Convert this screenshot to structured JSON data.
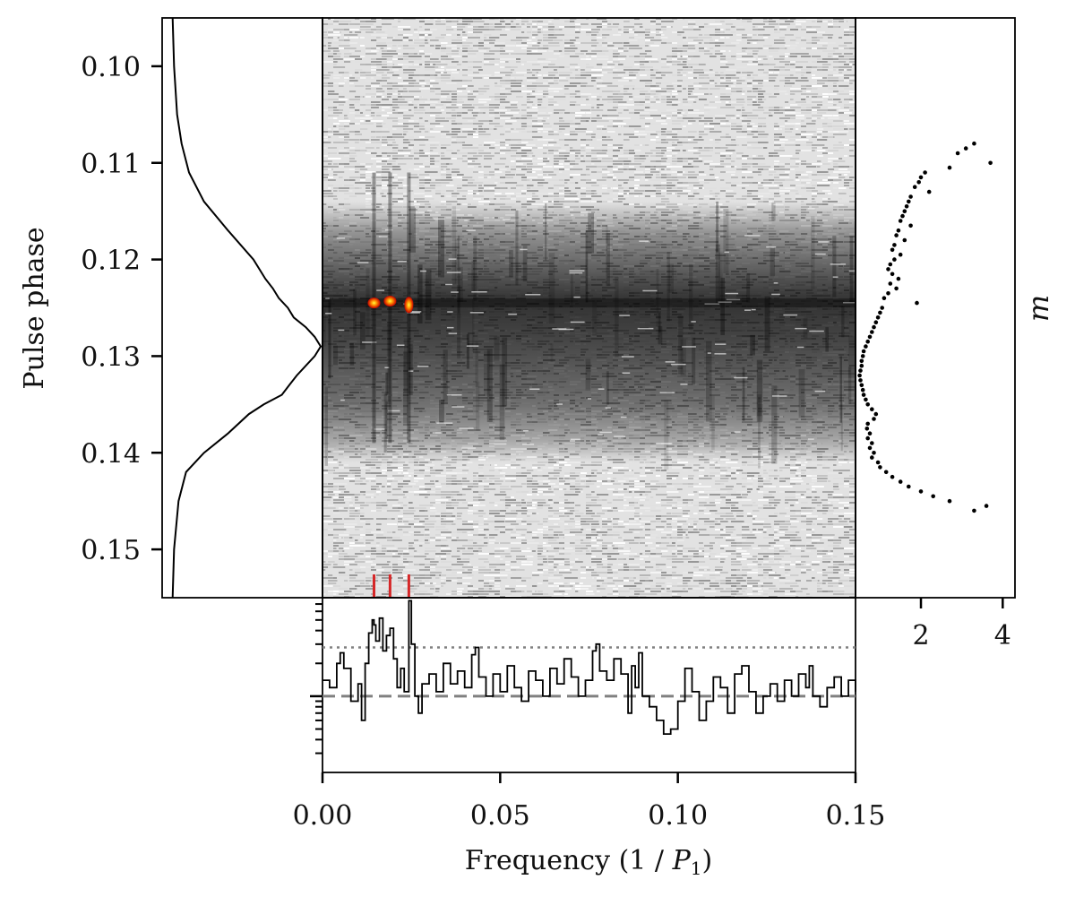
{
  "chart_data": [
    {
      "type": "heatmap",
      "panel": "main",
      "description_colormap": "grey background noise, dark horizontal band, red-yellow hot spots",
      "x_range": [
        0.0,
        0.15
      ],
      "y_range": [
        0.095,
        0.155
      ],
      "y_inverted": true,
      "band_phase_range": [
        0.114,
        0.141
      ],
      "band_peak_phase": 0.1245,
      "hot_spots": [
        {
          "freq": 0.0145,
          "phase": 0.1245
        },
        {
          "freq": 0.019,
          "phase": 0.1243
        },
        {
          "freq": 0.0243,
          "phase": 0.1247
        }
      ],
      "markers": {
        "color": "#d62728",
        "freqs": [
          0.0145,
          0.019,
          0.0243
        ]
      }
    },
    {
      "type": "line",
      "panel": "left-profile",
      "ylabel": "Pulse phase",
      "yticks": [
        "0.10",
        "0.11",
        "0.12",
        "0.13",
        "0.14",
        "0.15"
      ],
      "ytick_values": [
        0.1,
        0.11,
        0.12,
        0.13,
        0.14,
        0.15
      ],
      "y_range": [
        0.095,
        0.155
      ],
      "y_inverted": true,
      "profile": {
        "phase": [
          0.095,
          0.1,
          0.105,
          0.108,
          0.111,
          0.114,
          0.117,
          0.12,
          0.122,
          0.123,
          0.124,
          0.125,
          0.126,
          0.127,
          0.128,
          0.129,
          0.13,
          0.131,
          0.132,
          0.133,
          0.134,
          0.135,
          0.136,
          0.138,
          0.14,
          0.142,
          0.145,
          0.15,
          0.155
        ],
        "intensity": [
          0.01,
          0.02,
          0.04,
          0.07,
          0.12,
          0.22,
          0.38,
          0.55,
          0.63,
          0.68,
          0.72,
          0.78,
          0.82,
          0.9,
          0.96,
          1.0,
          0.96,
          0.9,
          0.84,
          0.79,
          0.74,
          0.62,
          0.52,
          0.38,
          0.22,
          0.1,
          0.05,
          0.02,
          0.01
        ]
      }
    },
    {
      "type": "scatter",
      "panel": "right-modulation-index",
      "xlabel": "m",
      "xticks": [
        "2",
        "4"
      ],
      "xtick_values": [
        2,
        4
      ],
      "x_range": [
        0.4,
        4.3
      ],
      "y_range": [
        0.095,
        0.155
      ],
      "points": {
        "phase": [
          0.108,
          0.1085,
          0.109,
          0.11,
          0.1105,
          0.111,
          0.1115,
          0.112,
          0.1125,
          0.113,
          0.1135,
          0.114,
          0.1145,
          0.115,
          0.1155,
          0.116,
          0.1165,
          0.117,
          0.1175,
          0.118,
          0.1185,
          0.119,
          0.1195,
          0.12,
          0.1205,
          0.121,
          0.1215,
          0.122,
          0.1225,
          0.123,
          0.1235,
          0.124,
          0.1245,
          0.125,
          0.1255,
          0.126,
          0.1265,
          0.127,
          0.1275,
          0.128,
          0.1285,
          0.129,
          0.1295,
          0.13,
          0.1305,
          0.131,
          0.1315,
          0.132,
          0.1325,
          0.133,
          0.1335,
          0.134,
          0.1345,
          0.135,
          0.1355,
          0.136,
          0.1365,
          0.137,
          0.1375,
          0.138,
          0.1385,
          0.139,
          0.1395,
          0.14,
          0.1405,
          0.141,
          0.1415,
          0.142,
          0.1425,
          0.143,
          0.1435,
          0.144,
          0.1445,
          0.145,
          0.1455,
          0.146
        ],
        "m": [
          3.3,
          3.1,
          2.9,
          3.7,
          2.7,
          2.1,
          2.0,
          1.95,
          1.85,
          2.2,
          1.75,
          1.7,
          1.65,
          1.6,
          1.55,
          1.5,
          1.75,
          1.45,
          1.4,
          1.6,
          1.35,
          1.3,
          1.5,
          1.35,
          1.25,
          1.2,
          1.3,
          1.45,
          1.25,
          1.4,
          1.2,
          1.1,
          1.9,
          1.05,
          1.0,
          0.95,
          0.9,
          0.85,
          0.8,
          0.75,
          0.7,
          0.65,
          0.6,
          0.58,
          0.55,
          0.55,
          0.52,
          0.5,
          0.52,
          0.55,
          0.58,
          0.6,
          0.65,
          0.7,
          0.8,
          0.9,
          0.85,
          0.7,
          0.68,
          0.75,
          0.7,
          0.8,
          0.75,
          0.85,
          0.8,
          0.95,
          1.0,
          1.15,
          1.3,
          1.5,
          1.7,
          2.0,
          2.3,
          2.7,
          3.6,
          3.3
        ],
        "color": "#000000"
      }
    },
    {
      "type": "line",
      "panel": "bottom-spectrum",
      "xlabel_text": "Frequency (1 / ",
      "xlabel_math": "P",
      "xlabel_sub": "1",
      "xlabel_close": ")",
      "xticks": [
        "0.00",
        "0.05",
        "0.10",
        "0.15"
      ],
      "xtick_values": [
        0.0,
        0.05,
        0.1,
        0.15
      ],
      "x_range": [
        0.0,
        0.15
      ],
      "y_log": true,
      "y_range": [
        0.2,
        8.0
      ],
      "dashed_level": 1.0,
      "dotted_level": 2.8,
      "spectrum": {
        "freq": [
          0.0,
          0.002,
          0.004,
          0.005,
          0.006,
          0.008,
          0.01,
          0.011,
          0.012,
          0.013,
          0.014,
          0.0145,
          0.015,
          0.016,
          0.017,
          0.018,
          0.019,
          0.02,
          0.021,
          0.022,
          0.023,
          0.0243,
          0.025,
          0.026,
          0.027,
          0.028,
          0.03,
          0.032,
          0.034,
          0.036,
          0.038,
          0.04,
          0.042,
          0.043,
          0.044,
          0.046,
          0.048,
          0.05,
          0.052,
          0.054,
          0.056,
          0.058,
          0.06,
          0.062,
          0.064,
          0.066,
          0.068,
          0.07,
          0.072,
          0.074,
          0.076,
          0.077,
          0.078,
          0.08,
          0.082,
          0.084,
          0.086,
          0.087,
          0.088,
          0.089,
          0.09,
          0.092,
          0.094,
          0.096,
          0.098,
          0.1,
          0.102,
          0.104,
          0.106,
          0.108,
          0.11,
          0.112,
          0.114,
          0.116,
          0.118,
          0.12,
          0.122,
          0.124,
          0.126,
          0.128,
          0.13,
          0.132,
          0.134,
          0.136,
          0.137,
          0.138,
          0.14,
          0.142,
          0.144,
          0.146,
          0.148,
          0.15
        ],
        "power": [
          1.4,
          1.2,
          2.0,
          2.5,
          1.8,
          0.9,
          1.3,
          0.6,
          2.0,
          3.8,
          5.0,
          4.5,
          3.2,
          5.2,
          2.6,
          3.6,
          4.2,
          2.2,
          1.2,
          1.8,
          1.1,
          7.5,
          3.0,
          1.0,
          0.7,
          1.3,
          1.6,
          1.1,
          2.0,
          1.3,
          1.7,
          1.2,
          2.4,
          2.8,
          1.5,
          1.0,
          1.6,
          1.1,
          1.9,
          1.2,
          0.9,
          1.7,
          1.4,
          1.0,
          1.8,
          1.3,
          2.2,
          1.5,
          1.0,
          1.4,
          2.6,
          3.0,
          1.7,
          1.4,
          2.2,
          1.6,
          0.7,
          1.9,
          1.2,
          2.5,
          1.0,
          0.8,
          0.6,
          0.45,
          0.5,
          0.9,
          1.8,
          1.1,
          0.6,
          0.9,
          1.5,
          1.2,
          0.7,
          1.6,
          1.9,
          1.1,
          0.7,
          1.0,
          1.3,
          0.9,
          1.4,
          1.0,
          1.6,
          1.2,
          1.9,
          1.0,
          0.8,
          1.2,
          1.5,
          1.0,
          1.4,
          1.1
        ]
      }
    }
  ]
}
